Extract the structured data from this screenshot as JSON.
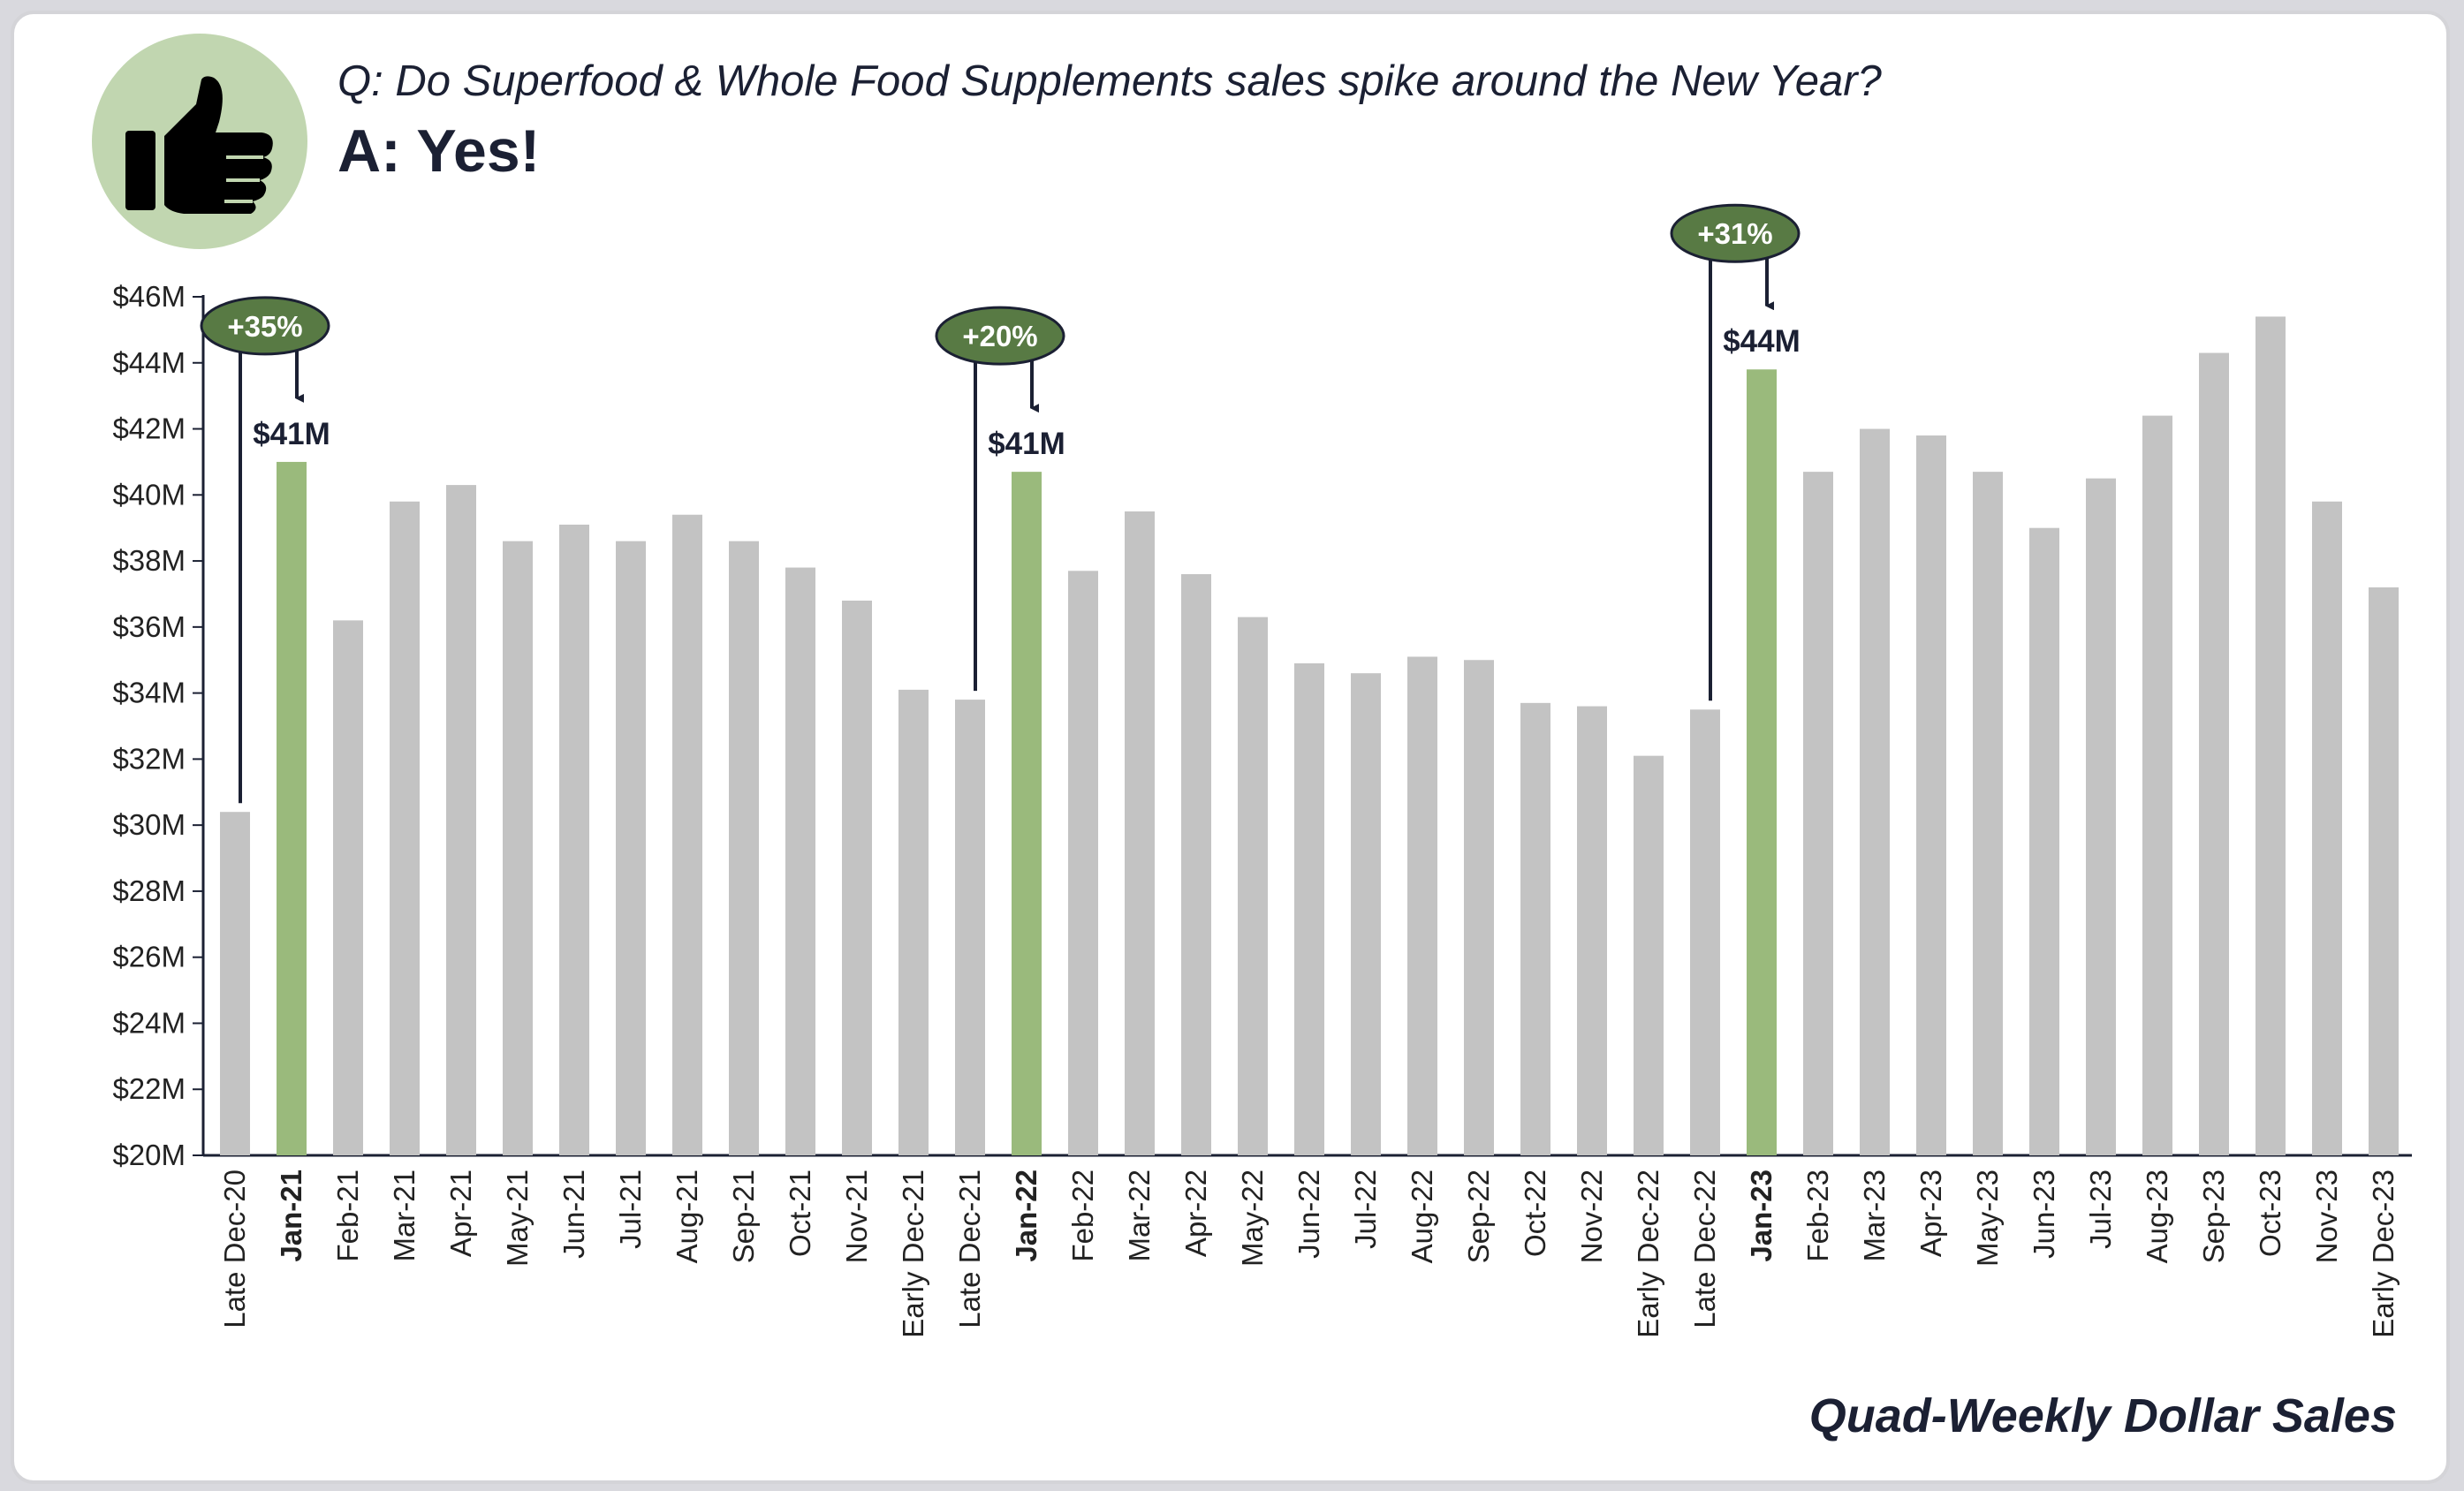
{
  "header": {
    "question": "Q: Do Superfood & Whole Food Supplements sales spike around the New Year?",
    "answer": "A: Yes!",
    "icon": "thumbs-up-icon"
  },
  "footer": {
    "title": "Quad-Weekly Dollar Sales"
  },
  "colors": {
    "bar": "#c3c3c3",
    "highlight_bar": "#9aba7c",
    "callout_fill": "#587a44",
    "badge_bg": "#c1d6b0",
    "text": "#1b2033"
  },
  "chart_data": {
    "type": "bar",
    "title": "",
    "xlabel": "",
    "ylabel": "",
    "ylim": [
      20,
      46
    ],
    "y_ticks": [
      "$20M",
      "$22M",
      "$24M",
      "$26M",
      "$28M",
      "$30M",
      "$32M",
      "$34M",
      "$36M",
      "$38M",
      "$40M",
      "$42M",
      "$44M",
      "$46M"
    ],
    "grid": false,
    "categories": [
      "Late Dec-20",
      "Jan-21",
      "Feb-21",
      "Mar-21",
      "Apr-21",
      "May-21",
      "Jun-21",
      "Jul-21",
      "Aug-21",
      "Sep-21",
      "Oct-21",
      "Nov-21",
      "Early Dec-21",
      "Late Dec-21",
      "Jan-22",
      "Feb-22",
      "Mar-22",
      "Apr-22",
      "May-22",
      "Jun-22",
      "Jul-22",
      "Aug-22",
      "Sep-22",
      "Oct-22",
      "Nov-22",
      "Early Dec-22",
      "Late Dec-22",
      "Jan-23",
      "Feb-23",
      "Mar-23",
      "Apr-23",
      "May-23",
      "Jun-23",
      "Jul-23",
      "Aug-23",
      "Sep-23",
      "Oct-23",
      "Nov-23",
      "Early Dec-23"
    ],
    "values": [
      30.4,
      41.0,
      36.2,
      39.8,
      40.3,
      38.6,
      39.1,
      38.6,
      39.4,
      38.6,
      37.8,
      36.8,
      34.1,
      33.8,
      40.7,
      37.7,
      39.5,
      37.6,
      36.3,
      34.9,
      34.6,
      35.1,
      35.0,
      33.7,
      33.6,
      32.1,
      33.5,
      43.8,
      40.7,
      42.0,
      41.8,
      40.7,
      39.0,
      40.5,
      42.4,
      44.3,
      45.4,
      39.8,
      37.2
    ],
    "highlight": [
      1,
      14,
      27
    ],
    "data_labels": [
      {
        "index": 1,
        "text": "$41M"
      },
      {
        "index": 14,
        "text": "$41M"
      },
      {
        "index": 27,
        "text": "$44M"
      }
    ],
    "annotations": [
      {
        "from_index": 0,
        "to_index": 1,
        "text": "+35%"
      },
      {
        "from_index": 13,
        "to_index": 14,
        "text": "+20%"
      },
      {
        "from_index": 26,
        "to_index": 27,
        "text": "+31%"
      }
    ]
  }
}
